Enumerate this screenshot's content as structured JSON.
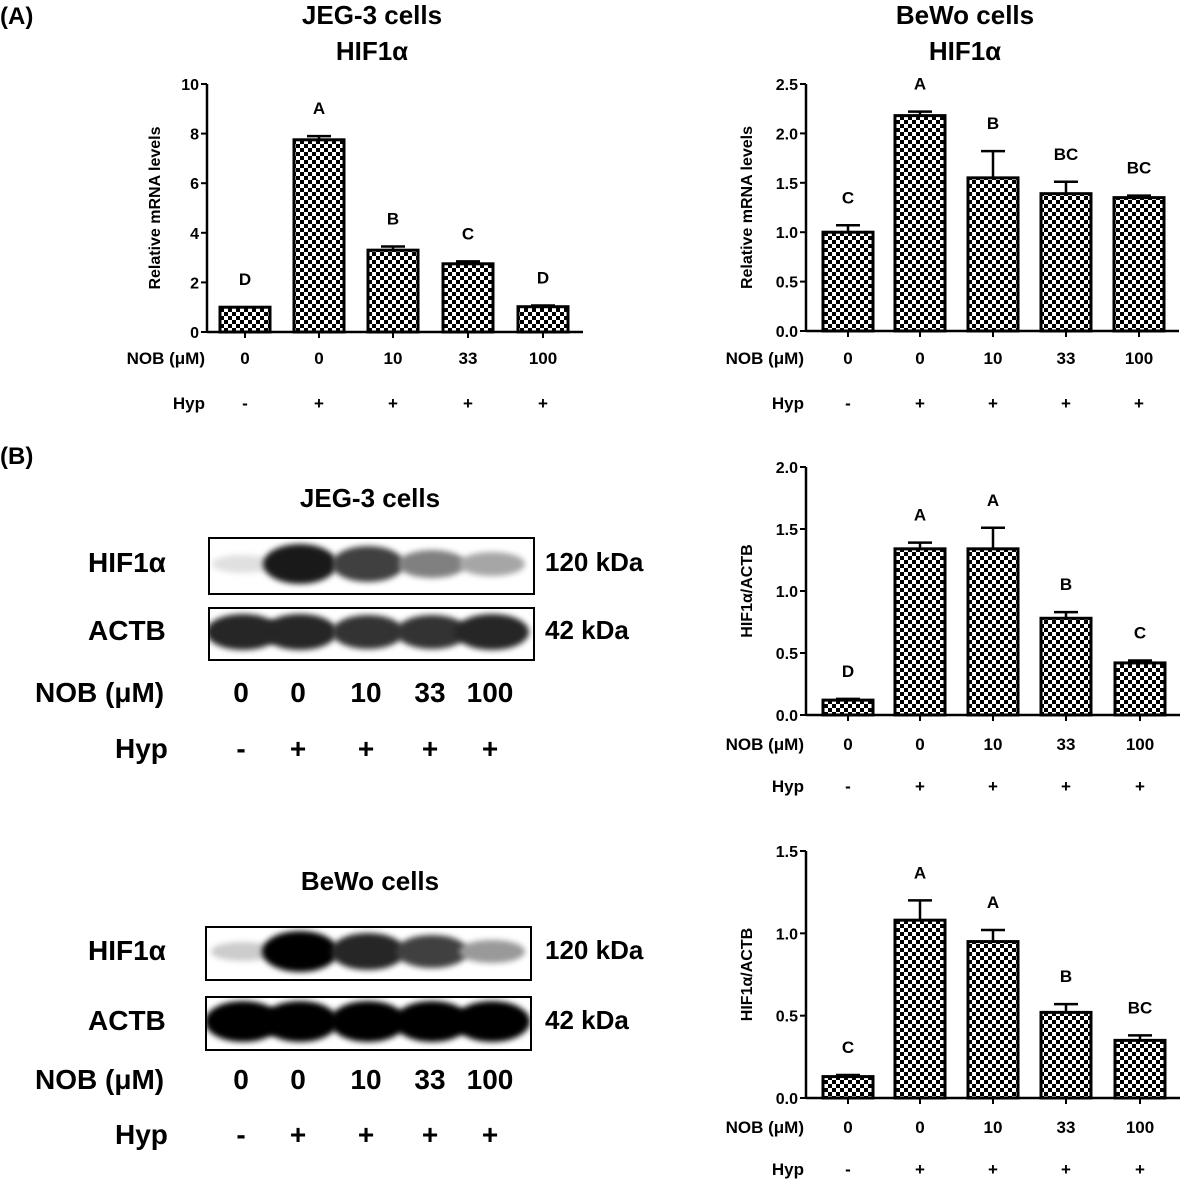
{
  "panels": {
    "a": "(A)",
    "b": "(B)"
  },
  "titles": {
    "jeg_cells": "JEG-3 cells",
    "bewo_cells": "BeWo cells",
    "hif": "HIF1α"
  },
  "blots": [
    {
      "title": "JEG-3 cells",
      "rows": [
        {
          "label": "HIF1α",
          "size": "120 kDa",
          "intensity": [
            0.12,
            0.9,
            0.75,
            0.5,
            0.35
          ]
        },
        {
          "label": "ACTB",
          "size": "42 kDa",
          "intensity": [
            0.85,
            0.85,
            0.8,
            0.8,
            0.85
          ]
        }
      ],
      "nob_label": "NOB (μM)",
      "nob": [
        "0",
        "0",
        "10",
        "33",
        "100"
      ],
      "hyp_label": "Hyp",
      "hyp": [
        "-",
        "+",
        "+",
        "+",
        "+"
      ]
    },
    {
      "title": "BeWo cells",
      "rows": [
        {
          "label": "HIF1α",
          "size": "120 kDa",
          "intensity": [
            0.2,
            1.0,
            0.85,
            0.75,
            0.4
          ]
        },
        {
          "label": "ACTB",
          "size": "42 kDa",
          "intensity": [
            1.0,
            1.0,
            1.0,
            1.0,
            1.0
          ]
        }
      ],
      "nob_label": "NOB (μM)",
      "nob": [
        "0",
        "0",
        "10",
        "33",
        "100"
      ],
      "hyp_label": "Hyp",
      "hyp": [
        "-",
        "+",
        "+",
        "+",
        "+"
      ]
    }
  ],
  "chart_data": [
    {
      "type": "bar",
      "title": "JEG-3 cells HIF1α",
      "ylabel": "Relative mRNA levels",
      "ylim": [
        0,
        10
      ],
      "yticks": [
        "0",
        "2",
        "4",
        "6",
        "8",
        "10"
      ],
      "categories": [
        "0",
        "0",
        "10",
        "33",
        "100"
      ],
      "values": [
        1.0,
        7.75,
        3.3,
        2.75,
        1.02
      ],
      "errors": [
        0.0,
        0.15,
        0.15,
        0.1,
        0.05
      ],
      "letters": [
        "D",
        "A",
        "B",
        "C",
        "D"
      ],
      "nob_label": "NOB (μM)",
      "hyp_label": "Hyp",
      "hyp": [
        "-",
        "+",
        "+",
        "+",
        "+"
      ],
      "fill": "checkerboard"
    },
    {
      "type": "bar",
      "title": "BeWo cells HIF1α",
      "ylabel": "Relative mRNA levels",
      "ylim": [
        0,
        2.5
      ],
      "yticks": [
        "0.0",
        "0.5",
        "1.0",
        "1.5",
        "2.0",
        "2.5"
      ],
      "categories": [
        "0",
        "0",
        "10",
        "33",
        "100"
      ],
      "values": [
        1.0,
        2.18,
        1.55,
        1.39,
        1.35
      ],
      "errors": [
        0.07,
        0.04,
        0.27,
        0.12,
        0.02
      ],
      "letters": [
        "C",
        "A",
        "B",
        "BC",
        "BC"
      ],
      "nob_label": "NOB (μM)",
      "hyp_label": "Hyp",
      "hyp": [
        "-",
        "+",
        "+",
        "+",
        "+"
      ],
      "fill": "checkerboard"
    },
    {
      "type": "bar",
      "ylabel": "HIF1α/ACTB",
      "ylim": [
        0,
        2.0
      ],
      "yticks": [
        "0.0",
        "0.5",
        "1.0",
        "1.5",
        "2.0"
      ],
      "categories": [
        "0",
        "0",
        "10",
        "33",
        "100"
      ],
      "values": [
        0.12,
        1.34,
        1.34,
        0.78,
        0.42
      ],
      "errors": [
        0.01,
        0.05,
        0.17,
        0.05,
        0.02
      ],
      "letters": [
        "D",
        "A",
        "A",
        "B",
        "C"
      ],
      "nob_label": "NOB (μM)",
      "hyp_label": "Hyp",
      "hyp": [
        "-",
        "+",
        "+",
        "+",
        "+"
      ],
      "fill": "checkerboard"
    },
    {
      "type": "bar",
      "ylabel": "HIF1α/ACTB",
      "ylim": [
        0,
        1.5
      ],
      "yticks": [
        "0.0",
        "0.5",
        "1.0",
        "1.5"
      ],
      "categories": [
        "0",
        "0",
        "10",
        "33",
        "100"
      ],
      "values": [
        0.13,
        1.08,
        0.95,
        0.52,
        0.35
      ],
      "errors": [
        0.01,
        0.12,
        0.07,
        0.05,
        0.03
      ],
      "letters": [
        "C",
        "A",
        "A",
        "B",
        "BC"
      ],
      "nob_label": "NOB (μM)",
      "hyp_label": "Hyp",
      "hyp": [
        "-",
        "+",
        "+",
        "+",
        "+"
      ],
      "fill": "checkerboard"
    }
  ]
}
